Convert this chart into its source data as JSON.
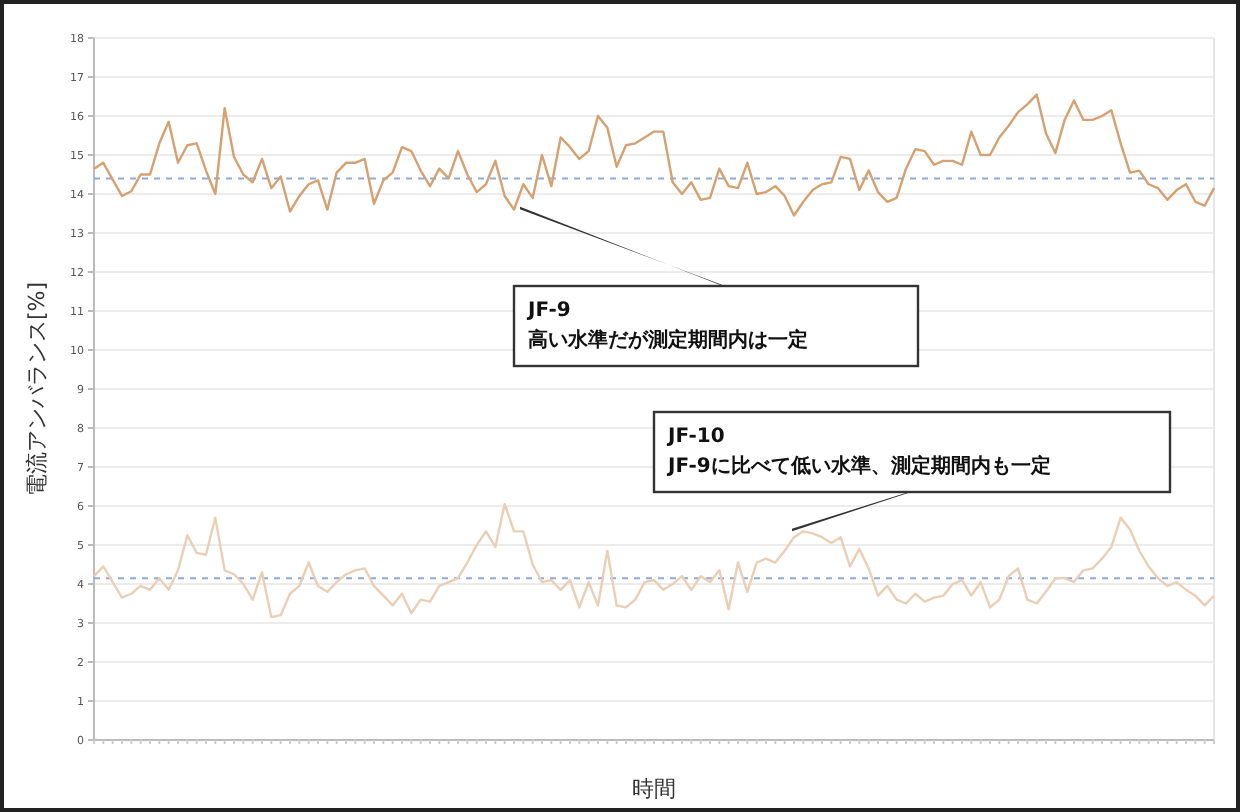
{
  "chart_data": {
    "type": "line",
    "xlabel": "時間",
    "ylabel": "電流アンバランス[%]",
    "ylim": [
      0,
      18
    ],
    "yticks": [
      0,
      1,
      2,
      3,
      4,
      5,
      6,
      7,
      8,
      9,
      10,
      11,
      12,
      13,
      14,
      15,
      16,
      17,
      18
    ],
    "grid": "y",
    "marker": "none",
    "line_style": "solid",
    "categories": [
      null,
      null,
      null,
      null,
      null,
      null,
      null,
      null,
      null,
      null,
      null,
      null,
      null,
      null,
      null,
      null,
      null,
      null,
      null,
      null,
      null,
      null,
      null,
      null,
      null,
      null,
      null,
      null,
      null,
      null,
      null,
      null,
      null,
      null,
      null,
      null,
      null,
      null,
      null,
      null,
      null,
      null,
      null,
      null,
      null,
      null,
      null,
      null,
      null,
      null,
      null,
      null,
      null,
      null,
      null,
      null,
      null,
      null,
      null,
      null,
      null,
      null,
      null,
      null,
      null,
      null,
      null,
      null,
      null,
      null,
      null,
      null,
      null,
      null,
      null,
      null,
      null,
      null,
      null,
      null,
      null,
      null,
      null,
      null,
      null,
      null,
      null,
      null,
      null,
      null,
      null,
      null,
      null,
      null,
      null,
      null,
      null,
      null,
      null,
      null,
      null,
      null,
      null,
      null,
      null,
      null,
      null,
      null,
      null,
      null,
      null,
      null,
      null,
      null,
      null,
      null,
      null,
      null,
      null,
      null,
      null
    ],
    "series": [
      {
        "color": "#d6a070",
        "values": [
          14.65,
          14.8,
          14.37,
          13.95,
          14.07,
          14.5,
          14.5,
          15.3,
          15.85,
          14.8,
          15.25,
          15.3,
          14.6,
          14.0,
          16.2,
          14.95,
          14.5,
          14.3,
          14.9,
          14.15,
          14.45,
          13.55,
          13.95,
          14.25,
          14.35,
          13.6,
          14.55,
          14.8,
          14.8,
          14.9,
          13.75,
          14.35,
          14.55,
          15.2,
          15.1,
          14.6,
          14.2,
          14.65,
          14.4,
          15.1,
          14.5,
          14.05,
          14.25,
          14.85,
          13.95,
          13.6,
          14.25,
          13.9,
          15.0,
          14.2,
          15.45,
          15.2,
          14.9,
          15.1,
          16.0,
          15.7,
          14.7,
          15.25,
          15.3,
          15.45,
          15.6,
          15.6,
          14.3,
          14.0,
          14.3,
          13.85,
          13.9,
          14.65,
          14.2,
          14.15,
          14.8,
          14.0,
          14.05,
          14.2,
          13.95,
          13.45,
          13.8,
          14.1,
          14.25,
          14.3,
          14.95,
          14.9,
          14.1,
          14.6,
          14.05,
          13.8,
          13.9,
          14.65,
          15.15,
          15.1,
          14.75,
          14.85,
          14.85,
          14.75,
          15.6,
          15.0,
          15.0,
          15.45,
          15.75,
          16.1,
          16.3,
          16.55,
          15.55,
          15.05,
          15.9,
          16.4,
          15.9,
          15.9,
          16.0,
          16.15,
          15.3,
          14.55,
          14.6,
          14.25,
          14.15,
          13.85,
          14.1,
          14.25,
          13.8,
          13.7,
          14.15
        ]
      },
      {
        "color": "#ebcfb5",
        "values": [
          4.2,
          4.45,
          4.05,
          3.65,
          3.75,
          3.95,
          3.85,
          4.15,
          3.85,
          4.35,
          5.25,
          4.8,
          4.75,
          5.7,
          4.35,
          4.25,
          4.0,
          3.6,
          4.3,
          3.15,
          3.2,
          3.75,
          3.95,
          4.55,
          3.95,
          3.8,
          4.05,
          4.25,
          4.35,
          4.4,
          3.95,
          3.7,
          3.45,
          3.75,
          3.25,
          3.6,
          3.55,
          3.95,
          4.05,
          4.15,
          4.55,
          5.0,
          5.35,
          4.95,
          6.05,
          5.35,
          5.35,
          4.5,
          4.05,
          4.1,
          3.85,
          4.1,
          3.4,
          4.05,
          3.45,
          4.85,
          3.45,
          3.4,
          3.6,
          4.05,
          4.1,
          3.85,
          4.0,
          4.2,
          3.85,
          4.2,
          4.05,
          4.35,
          3.35,
          4.55,
          3.8,
          4.55,
          4.65,
          4.55,
          4.85,
          5.2,
          5.35,
          5.3,
          5.2,
          5.05,
          5.2,
          4.45,
          4.9,
          4.4,
          3.7,
          3.95,
          3.6,
          3.5,
          3.75,
          3.55,
          3.65,
          3.7,
          4.0,
          4.1,
          3.7,
          4.05,
          3.4,
          3.6,
          4.2,
          4.4,
          3.6,
          3.5,
          3.8,
          4.15,
          4.15,
          4.05,
          4.35,
          4.4,
          4.65,
          4.95,
          5.7,
          5.4,
          4.85,
          4.45,
          4.15,
          3.95,
          4.05,
          3.85,
          3.7,
          3.45,
          3.7
        ]
      }
    ],
    "ref_lines": [
      {
        "axis": "y",
        "value": 14.4,
        "color": "#8eaadb",
        "line_style": "dashed"
      },
      {
        "axis": "y",
        "value": 4.15,
        "color": "#8eaadb",
        "line_style": "dashed"
      }
    ],
    "annotations": [
      "JF-9\n高い水準だが測定期間内は一定",
      "JF-10\nJF-9に比べて低い水準、測定期間内も一定"
    ]
  }
}
